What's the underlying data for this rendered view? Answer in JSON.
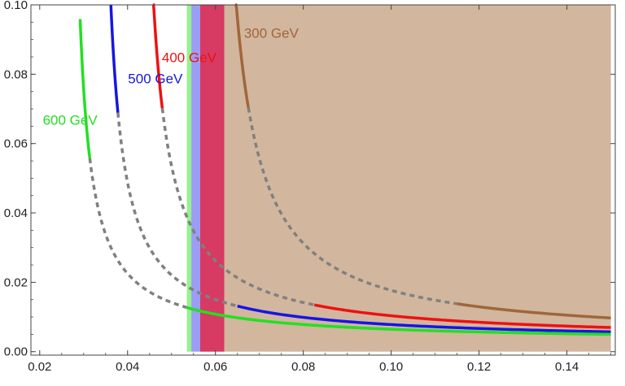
{
  "chart_data": {
    "type": "line",
    "title": "",
    "xlabel": "",
    "ylabel": "",
    "xlim": [
      0.018,
      0.151
    ],
    "ylim": [
      -0.001,
      0.1
    ],
    "x_ticks": [
      "0.02",
      "0.04",
      "0.06",
      "0.08",
      "0.10",
      "0.12",
      "0.14"
    ],
    "y_ticks": [
      "0.00",
      "0.02",
      "0.04",
      "0.06",
      "0.08",
      "0.10"
    ],
    "regions": [
      {
        "name": "300 GeV region",
        "x_from": 0.062,
        "x_to": 0.15,
        "color": "#cdae94",
        "opacity": 0.9
      },
      {
        "name": "400 GeV region",
        "x_from": 0.0565,
        "x_to": 0.062,
        "color": "#d01848",
        "opacity": 0.85
      },
      {
        "name": "500 GeV region",
        "x_from": 0.0545,
        "x_to": 0.0565,
        "color": "#8a8cf4",
        "opacity": 0.85
      },
      {
        "name": "600 GeV region",
        "x_from": 0.0535,
        "x_to": 0.0545,
        "color": "#8ef284",
        "opacity": 0.95
      }
    ],
    "series": [
      {
        "label": "300 GeV",
        "color": "#a0663a",
        "a": 0.000605,
        "offset": 0.0585,
        "floor": 0.0031,
        "x_start": 0.0645,
        "x_break": 0.0675,
        "x_solid": 0.115,
        "x_end": 0.15
      },
      {
        "label": "400 GeV",
        "color": "#ee1111",
        "a": 0.00043,
        "offset": 0.0415,
        "floor": 0.003,
        "x_start": 0.0458,
        "x_break": 0.0479,
        "x_solid": 0.0825,
        "x_end": 0.15
      },
      {
        "label": "500 GeV",
        "color": "#1515e6",
        "a": 0.00033,
        "offset": 0.0328,
        "floor": 0.0029,
        "x_start": 0.0362,
        "x_break": 0.0378,
        "x_solid": 0.065,
        "x_end": 0.15
      },
      {
        "label": "600 GeV",
        "color": "#22e022",
        "a": 0.00027,
        "offset": 0.0263,
        "floor": 0.0028,
        "x_start": 0.0292,
        "x_break": 0.0314,
        "x_solid": 0.0535,
        "x_end": 0.15
      }
    ],
    "label_positions": [
      {
        "label": "300 GeV",
        "x": 0.0665,
        "y": 0.0905
      },
      {
        "label": "400 GeV",
        "x": 0.0478,
        "y": 0.0835
      },
      {
        "label": "500 GeV",
        "x": 0.0401,
        "y": 0.0774
      },
      {
        "label": "600 GeV",
        "x": 0.0207,
        "y": 0.0654
      }
    ],
    "grid": false
  }
}
